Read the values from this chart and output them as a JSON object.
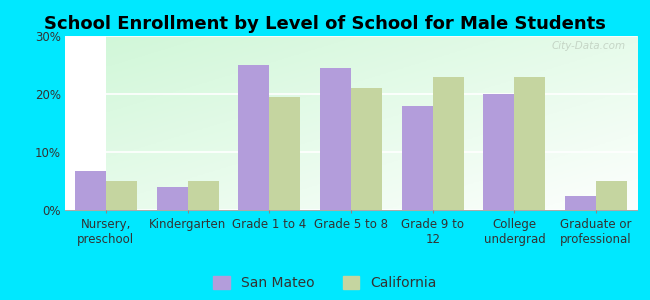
{
  "title": "School Enrollment by Level of School for Male Students",
  "categories": [
    "Nursery,\npreschool",
    "Kindergarten",
    "Grade 1 to 4",
    "Grade 5 to 8",
    "Grade 9 to\n12",
    "College\nundergrad",
    "Graduate or\nprofessional"
  ],
  "san_mateo": [
    6.8,
    4.0,
    25.0,
    24.5,
    18.0,
    20.0,
    2.5
  ],
  "california": [
    5.0,
    5.0,
    19.5,
    21.0,
    23.0,
    23.0,
    5.0
  ],
  "san_mateo_color": "#b39ddb",
  "california_color": "#c5d5a0",
  "background_color": "#00e8ff",
  "ylim": [
    0,
    30
  ],
  "yticks": [
    0,
    10,
    20,
    30
  ],
  "ytick_labels": [
    "0%",
    "10%",
    "20%",
    "30%"
  ],
  "legend_san_mateo": "San Mateo",
  "legend_california": "California",
  "title_fontsize": 13,
  "tick_fontsize": 8.5,
  "legend_fontsize": 10
}
